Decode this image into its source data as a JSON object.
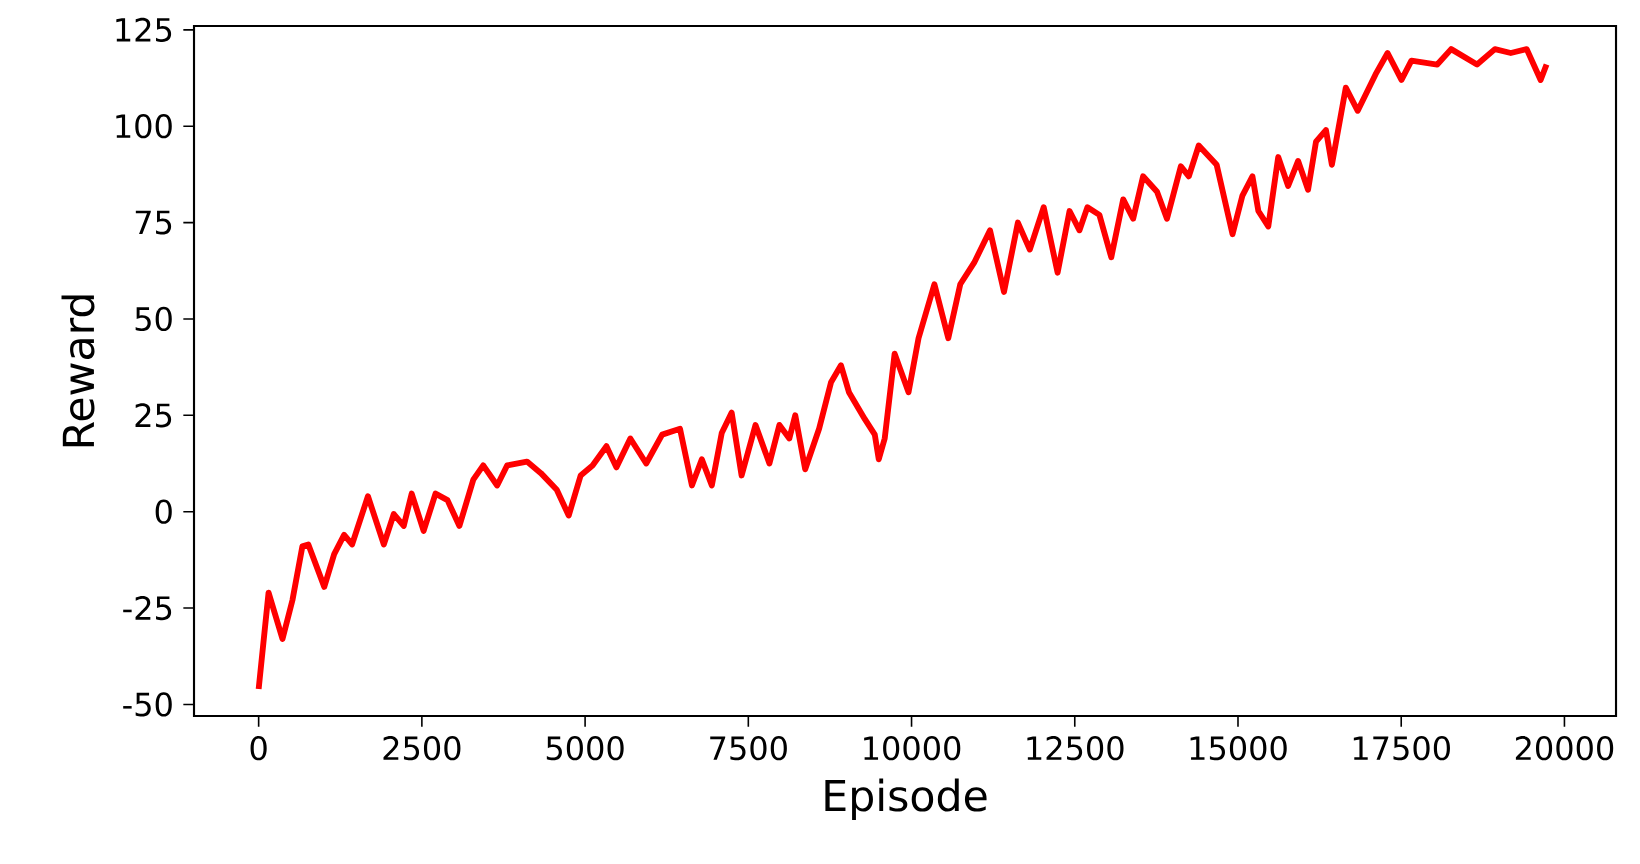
{
  "chart_data": {
    "type": "line",
    "xlabel": "Episode",
    "ylabel": "Reward",
    "xlim": [
      -990,
      20790
    ],
    "ylim": [
      -53,
      126
    ],
    "xticks": [
      0,
      2500,
      5000,
      7500,
      10000,
      12500,
      15000,
      17500,
      20000
    ],
    "yticks": [
      -50,
      -25,
      0,
      25,
      50,
      75,
      100,
      125
    ],
    "series": [
      {
        "color": "#ff0000",
        "x": [
          0,
          152,
          365,
          517,
          670,
          761,
          1005,
          1157,
          1309,
          1431,
          1674,
          1918,
          2070,
          2222,
          2344,
          2527,
          2709,
          2892,
          3075,
          3288,
          3440,
          3653,
          3805,
          4110,
          4323,
          4566,
          4749,
          4932,
          5114,
          5327,
          5479,
          5693,
          5936,
          6180,
          6454,
          6636,
          6788,
          6941,
          7093,
          7245,
          7397,
          7610,
          7823,
          7976,
          8128,
          8219,
          8371,
          8584,
          8767,
          8919,
          9041,
          9285,
          9437,
          9498,
          9589,
          9741,
          9954,
          10107,
          10350,
          10563,
          10746,
          10959,
          11202,
          11416,
          11629,
          11811,
          12024,
          12237,
          12420,
          12572,
          12694,
          12877,
          13059,
          13242,
          13394,
          13546,
          13760,
          13912,
          14125,
          14247,
          14399,
          14673,
          14916,
          15068,
          15221,
          15312,
          15464,
          15616,
          15768,
          15921,
          16073,
          16195,
          16347,
          16438,
          16651,
          16834,
          17108,
          17291,
          17504,
          17656,
          18052,
          18265,
          18661,
          18935,
          19178,
          19422,
          19635,
          19726
        ],
        "values": [
          -46,
          -21,
          -33,
          -23,
          -9,
          -8.5,
          -19.5,
          -11,
          -6,
          -8.5,
          4,
          -8.5,
          -0.6,
          -3.7,
          4.7,
          -5,
          4.7,
          3,
          -3.7,
          8.3,
          12,
          6.8,
          12,
          13,
          10,
          5.7,
          -1,
          9.4,
          12,
          17,
          11.5,
          19,
          12.5,
          20,
          21.5,
          6.8,
          13.6,
          6.8,
          20.4,
          25.7,
          9.4,
          22.5,
          12.5,
          22.5,
          19,
          25,
          11,
          21.5,
          33.6,
          38,
          31,
          24,
          20,
          13.6,
          19,
          41,
          31,
          45,
          59,
          45,
          59,
          64.6,
          73,
          57,
          75,
          68,
          79,
          62,
          78,
          73,
          79,
          77,
          66,
          81,
          76,
          87,
          83,
          76,
          89.6,
          87,
          95,
          90,
          72,
          82,
          87,
          78,
          74,
          92,
          84.5,
          91,
          83.5,
          96,
          99,
          90,
          110,
          104,
          113.5,
          119,
          112,
          117,
          116,
          120,
          116,
          120,
          119,
          120,
          112,
          116
        ]
      }
    ]
  }
}
